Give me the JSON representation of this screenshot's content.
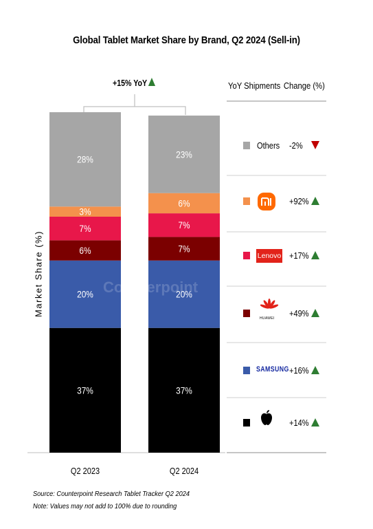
{
  "title": "Global Tablet Market Share by Brand, Q2 2024 (Sell-in)",
  "ylabel": "Market Share (%)",
  "growth_label": "+15% YoY",
  "legend_header": [
    "YoY Shipments",
    "Change (%)"
  ],
  "watermark": "Counterpoint",
  "footnotes": [
    "Source: Counterpoint Research Tablet Tracker Q2 2024",
    "Note: Values may not add to 100% due to rounding"
  ],
  "legend": [
    {
      "name": "Others",
      "logo": "",
      "change": "-2%",
      "direction": "down",
      "color": "#a6a6a6"
    },
    {
      "name": "",
      "logo": "xiaomi-logo",
      "change": "+92%",
      "direction": "up",
      "color": "#f4914c"
    },
    {
      "name": "",
      "logo": "lenovo-logo",
      "logo_text": "Lenovo",
      "change": "+17%",
      "direction": "up",
      "color": "#e8174a"
    },
    {
      "name": "",
      "logo": "huawei-logo",
      "logo_text": "HUAWEI",
      "change": "+49%",
      "direction": "up",
      "color": "#7b0000"
    },
    {
      "name": "",
      "logo": "samsung-logo",
      "logo_text": "SAMSUNG",
      "change": "+16%",
      "direction": "up",
      "color": "#3a5ba9"
    },
    {
      "name": "",
      "logo": "apple-logo",
      "change": "+14%",
      "direction": "up",
      "color": "#000000"
    }
  ],
  "chart_data": {
    "type": "bar",
    "stacked": true,
    "categories": [
      "Q2 2023",
      "Q2 2024"
    ],
    "series": [
      {
        "name": "Apple",
        "color": "#000000",
        "values": [
          37,
          37
        ],
        "labels": [
          "37%",
          "37%"
        ]
      },
      {
        "name": "Samsung",
        "color": "#3a5ba9",
        "values": [
          20,
          20
        ],
        "labels": [
          "20%",
          "20%"
        ]
      },
      {
        "name": "Huawei",
        "color": "#7b0000",
        "values": [
          6,
          7
        ],
        "labels": [
          "6%",
          "7%"
        ]
      },
      {
        "name": "Lenovo",
        "color": "#e8174a",
        "values": [
          7,
          7
        ],
        "labels": [
          "7%",
          "7%"
        ]
      },
      {
        "name": "Xiaomi",
        "color": "#f4914c",
        "values": [
          3,
          6
        ],
        "labels": [
          "3%",
          "6%"
        ]
      },
      {
        "name": "Others",
        "color": "#a6a6a6",
        "values": [
          28,
          23
        ],
        "labels": [
          "28%",
          "23%"
        ]
      }
    ],
    "ylim": [
      0,
      100
    ],
    "grid": false,
    "legend_position": "right"
  }
}
